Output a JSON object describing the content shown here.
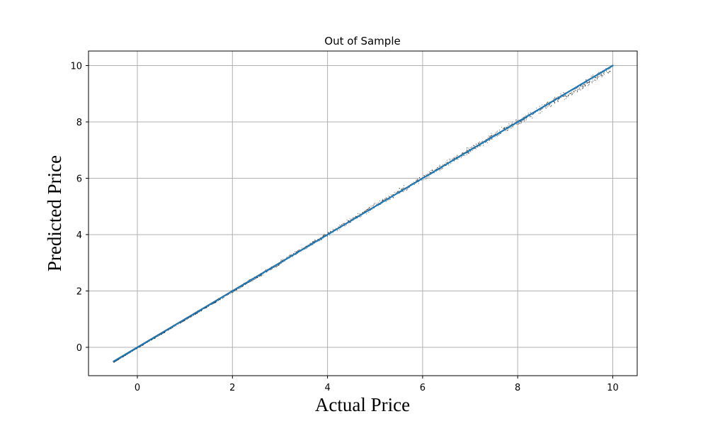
{
  "chart_data": {
    "type": "scatter",
    "title": "Out of Sample",
    "xlabel": "Actual Price",
    "ylabel": "Predicted Price",
    "xlim": [
      -1.0,
      10.5
    ],
    "ylim": [
      -1.0,
      10.5
    ],
    "xticks": [
      0,
      2,
      4,
      6,
      8,
      10
    ],
    "yticks": [
      0,
      2,
      4,
      6,
      8,
      10
    ],
    "grid": true,
    "colors": {
      "points": "#000000",
      "fit_line": "#1f77b4",
      "grid": "#b0b0b0"
    },
    "series": [
      {
        "type": "scatter",
        "x_range": [
          -0.5,
          9.95
        ],
        "description_points": "dense cloud along y = x, denser near low prices",
        "sample": [
          [
            -0.5,
            -0.48
          ],
          [
            -0.3,
            -0.3
          ],
          [
            0.0,
            0.0
          ],
          [
            0.5,
            0.5
          ],
          [
            1.0,
            1.0
          ],
          [
            2.0,
            2.0
          ],
          [
            3.0,
            3.02
          ],
          [
            4.0,
            4.05
          ],
          [
            5.0,
            5.03
          ],
          [
            6.0,
            6.05
          ],
          [
            7.0,
            7.05
          ],
          [
            8.0,
            8.02
          ],
          [
            9.0,
            9.0
          ],
          [
            9.9,
            9.8
          ]
        ]
      },
      {
        "type": "line",
        "x": [
          -0.5,
          10.0
        ],
        "y": [
          -0.5,
          10.0
        ]
      }
    ]
  }
}
